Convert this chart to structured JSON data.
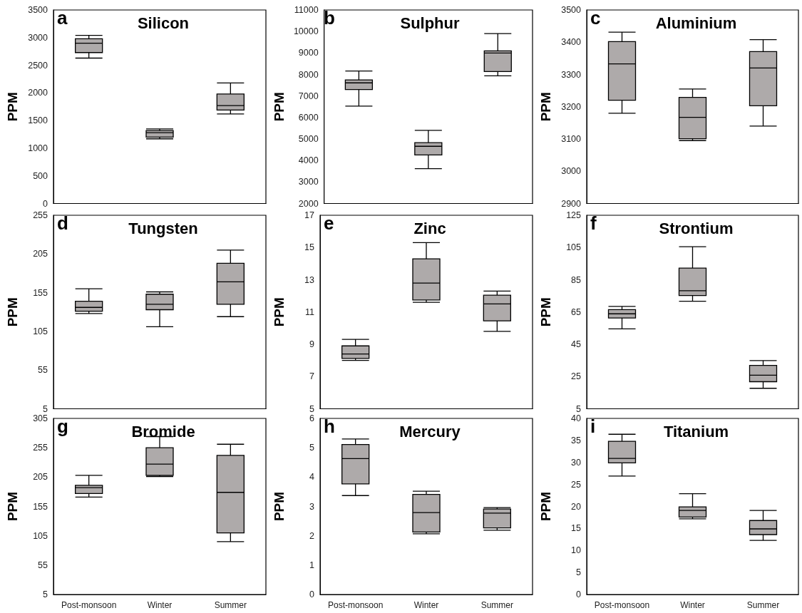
{
  "chart_data": [
    {
      "type": "box",
      "title": "Silicon",
      "annotations": [
        "a"
      ],
      "ylabel": "PPM",
      "categories": [
        null,
        null,
        null
      ],
      "color": "#aeaaaa",
      "ylim": [
        0,
        3500
      ],
      "yticks": [
        0,
        500,
        1000,
        1500,
        2000,
        2500,
        3000,
        3500
      ],
      "tick_labels": "y",
      "boxes": [
        {
          "low": 2630,
          "q1": 2730,
          "median": 2900,
          "q3": 2980,
          "high": 3040
        },
        {
          "low": 1170,
          "q1": 1200,
          "median": 1280,
          "q3": 1320,
          "high": 1350
        },
        {
          "low": 1620,
          "q1": 1690,
          "median": 1770,
          "q3": 1980,
          "high": 2180
        }
      ]
    },
    {
      "type": "box",
      "title": "Sulphur",
      "annotations": [
        "b"
      ],
      "ylabel": "PPM",
      "categories": [
        null,
        null,
        null
      ],
      "color": "#aeaaaa",
      "ylim": [
        2000,
        11000
      ],
      "yticks": [
        2000,
        3000,
        4000,
        5000,
        6000,
        7000,
        8000,
        9000,
        10000,
        11000
      ],
      "tick_labels": "y",
      "boxes": [
        {
          "low": 6530,
          "q1": 7300,
          "median": 7610,
          "q3": 7750,
          "high": 8160
        },
        {
          "low": 3620,
          "q1": 4260,
          "median": 4660,
          "q3": 4830,
          "high": 5400
        },
        {
          "low": 7940,
          "q1": 8140,
          "median": 9000,
          "q3": 9100,
          "high": 9900
        }
      ]
    },
    {
      "type": "box",
      "title": "Aluminium",
      "annotations": [
        "c"
      ],
      "ylabel": "PPM",
      "categories": [
        null,
        null,
        null
      ],
      "color": "#aeaaaa",
      "ylim": [
        2900,
        3500
      ],
      "yticks": [
        2900,
        3000,
        3100,
        3200,
        3300,
        3400,
        3500
      ],
      "tick_labels": "y",
      "boxes": [
        {
          "low": 3180,
          "q1": 3220,
          "median": 3333,
          "q3": 3402,
          "high": 3431
        },
        {
          "low": 3095,
          "q1": 3101,
          "median": 3167,
          "q3": 3229,
          "high": 3255
        },
        {
          "low": 3140,
          "q1": 3203,
          "median": 3320,
          "q3": 3371,
          "high": 3408
        }
      ]
    },
    {
      "type": "box",
      "title": "Tungsten",
      "annotations": [
        "d"
      ],
      "ylabel": "PPM",
      "categories": [
        null,
        null,
        null
      ],
      "color": "#aeaaaa",
      "ylim": [
        5,
        255
      ],
      "yticks": [
        5,
        55,
        105,
        155,
        205,
        255
      ],
      "tick_labels": "y",
      "boxes": [
        {
          "low": 128,
          "q1": 131,
          "median": 136,
          "q3": 144,
          "high": 160
        },
        {
          "low": 111,
          "q1": 133,
          "median": 140,
          "q3": 153,
          "high": 156
        },
        {
          "low": 124,
          "q1": 140,
          "median": 169,
          "q3": 193,
          "high": 210
        }
      ]
    },
    {
      "type": "box",
      "title": "Zinc",
      "annotations": [
        "e"
      ],
      "ylabel": "PPM",
      "categories": [
        null,
        null,
        null
      ],
      "color": "#aeaaaa",
      "ylim": [
        5,
        17
      ],
      "yticks": [
        5,
        7,
        9,
        11,
        13,
        15,
        17
      ],
      "tick_labels": "y",
      "boxes": [
        {
          "low": 8.0,
          "q1": 8.12,
          "median": 8.4,
          "q3": 8.9,
          "high": 9.3
        },
        {
          "low": 11.6,
          "q1": 11.75,
          "median": 12.8,
          "q3": 14.3,
          "high": 15.3
        },
        {
          "low": 9.8,
          "q1": 10.45,
          "median": 11.5,
          "q3": 12.04,
          "high": 12.3
        }
      ]
    },
    {
      "type": "box",
      "title": "Strontium",
      "annotations": [
        "f"
      ],
      "ylabel": "PPM",
      "categories": [
        null,
        null,
        null
      ],
      "color": "#aeaaaa",
      "ylim": [
        5,
        125
      ],
      "yticks": [
        5,
        25,
        45,
        65,
        85,
        105,
        125
      ],
      "tick_labels": "y",
      "boxes": [
        {
          "low": 54.6,
          "q1": 61.3,
          "median": 63.9,
          "q3": 66.5,
          "high": 68.5
        },
        {
          "low": 71.7,
          "q1": 75.2,
          "median": 78.2,
          "q3": 92.2,
          "high": 105.5
        },
        {
          "low": 17.7,
          "q1": 21.8,
          "median": 25.8,
          "q3": 31.9,
          "high": 34.9
        }
      ]
    },
    {
      "type": "box",
      "title": "Bromide",
      "annotations": [
        "g"
      ],
      "ylabel": "PPM",
      "categories": [
        "Post-monsoon",
        "Winter",
        "Summer"
      ],
      "color": "#aeaaaa",
      "ylim": [
        5,
        305
      ],
      "yticks": [
        5,
        55,
        105,
        155,
        205,
        255,
        305
      ],
      "boxes": [
        {
          "low": 171,
          "q1": 177,
          "median": 187,
          "q3": 191,
          "high": 208
        },
        {
          "low": 206,
          "q1": 208,
          "median": 227,
          "q3": 255,
          "high": 274
        },
        {
          "low": 95,
          "q1": 110,
          "median": 179,
          "q3": 242,
          "high": 261
        }
      ]
    },
    {
      "type": "box",
      "title": "Mercury",
      "annotations": [
        "h"
      ],
      "ylabel": "PPM",
      "categories": [
        "Post-monsoon",
        "Winter",
        "Summer"
      ],
      "color": "#aeaaaa",
      "ylim": [
        0,
        6
      ],
      "yticks": [
        0,
        1,
        2,
        3,
        4,
        5,
        6
      ],
      "boxes": [
        {
          "low": 3.37,
          "q1": 3.77,
          "median": 4.63,
          "q3": 5.11,
          "high": 5.3
        },
        {
          "low": 2.07,
          "q1": 2.13,
          "median": 2.79,
          "q3": 3.41,
          "high": 3.52
        },
        {
          "low": 2.19,
          "q1": 2.27,
          "median": 2.77,
          "q3": 2.91,
          "high": 2.96
        }
      ]
    },
    {
      "type": "box",
      "title": "Titanium",
      "annotations": [
        "i"
      ],
      "ylabel": "PPM",
      "categories": [
        "Post-monsoon",
        "Winter",
        "Summer"
      ],
      "color": "#aeaaaa",
      "ylim": [
        0,
        40
      ],
      "yticks": [
        0,
        5,
        10,
        15,
        20,
        25,
        30,
        35,
        40
      ],
      "boxes": [
        {
          "low": 26.9,
          "q1": 29.9,
          "median": 30.9,
          "q3": 34.8,
          "high": 36.4
        },
        {
          "low": 17.2,
          "q1": 17.6,
          "median": 19.1,
          "q3": 19.9,
          "high": 22.9
        },
        {
          "low": 12.3,
          "q1": 13.6,
          "median": 14.9,
          "q3": 16.8,
          "high": 19.1
        }
      ]
    }
  ]
}
